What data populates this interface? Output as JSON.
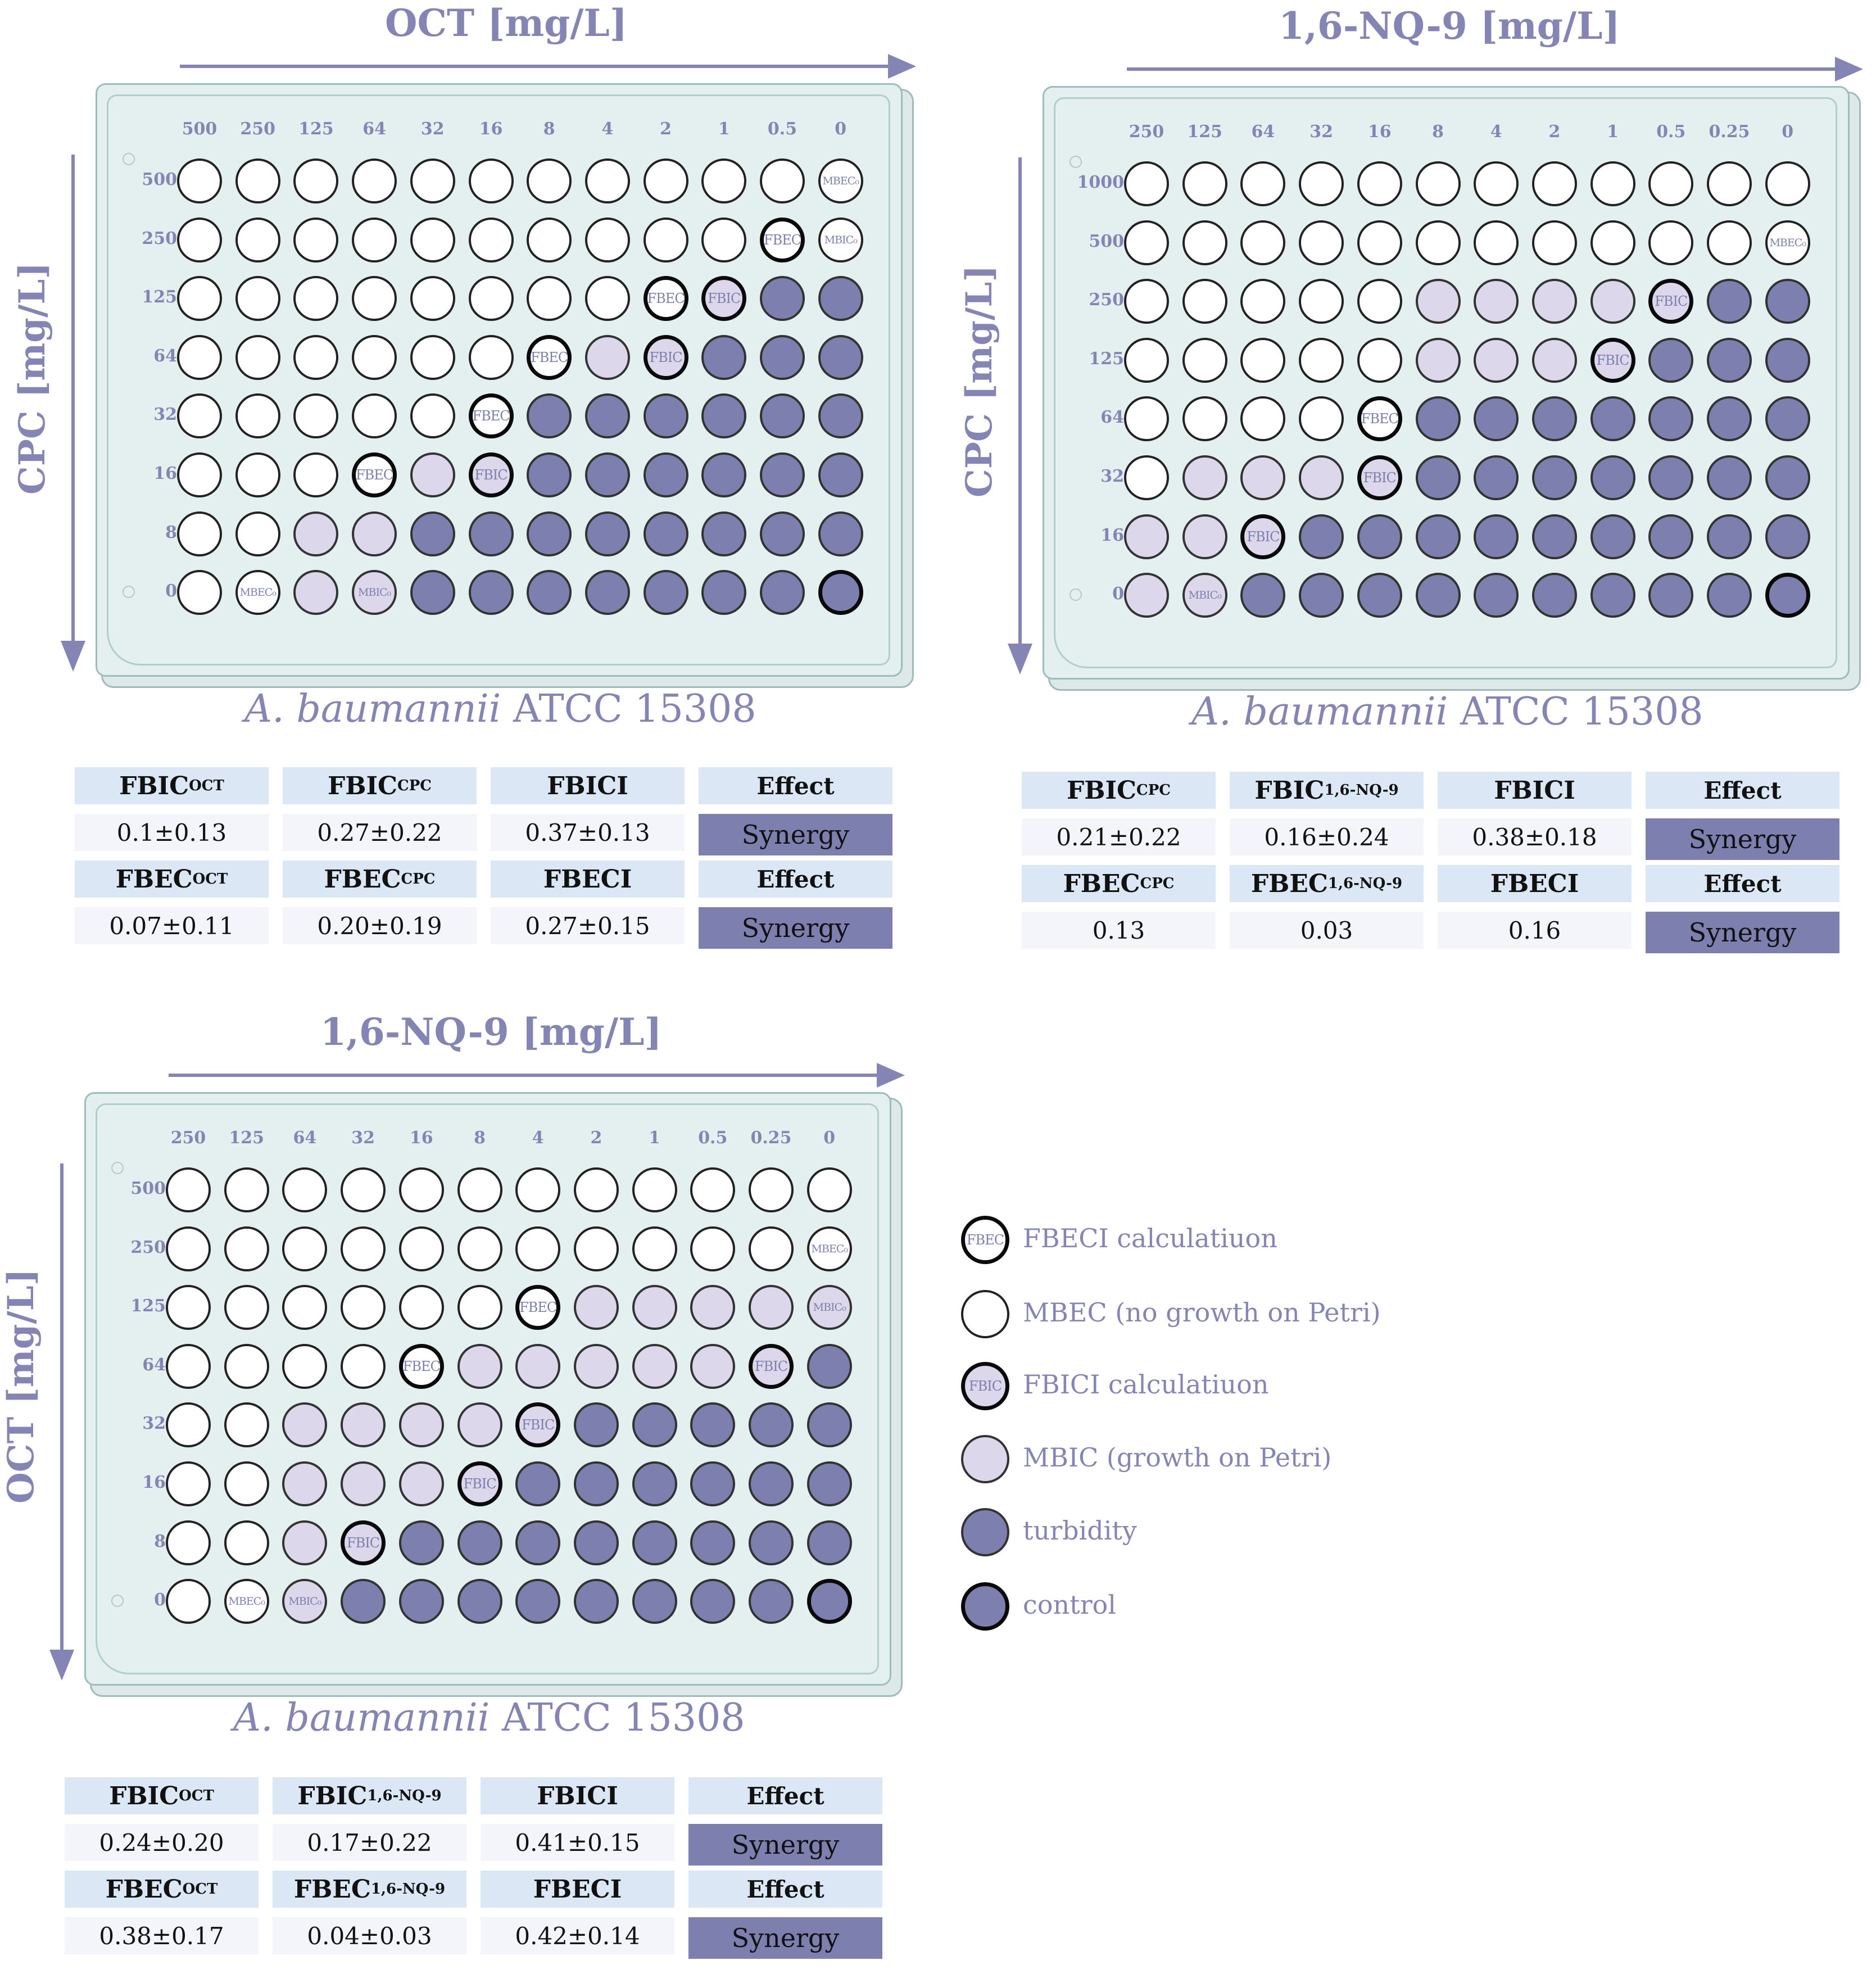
{
  "panels": [
    {
      "x_title": "OCT [mg/L]",
      "y_title": "CPC [mg/L]",
      "cols": [
        "500",
        "250",
        "125",
        "64",
        "32",
        "16",
        "8",
        "4",
        "2",
        "1",
        "0.5",
        "0"
      ],
      "rows": [
        "500",
        "250",
        "125",
        "64",
        "32",
        "16",
        "8",
        "0"
      ],
      "grid": [
        "WWWWWWWWWWWW",
        "WWWWWWWWWWEW",
        "WWWWWWWWEIDD",
        "WWWWWWELIDDD",
        "WWWWWEDDDDDD",
        "WWWELIDDDDDD",
        "WWLLDDDDDDDD",
        "WWLLDDDDDDDC"
      ],
      "labels": [
        {
          "r": 0,
          "c": 11,
          "t": "MBEC₀"
        },
        {
          "r": 1,
          "c": 10,
          "t": "FBEC"
        },
        {
          "r": 1,
          "c": 11,
          "t": "MBIC₀"
        },
        {
          "r": 2,
          "c": 8,
          "t": "FBEC"
        },
        {
          "r": 2,
          "c": 9,
          "t": "FBIC"
        },
        {
          "r": 3,
          "c": 6,
          "t": "FBEC"
        },
        {
          "r": 3,
          "c": 8,
          "t": "FBIC"
        },
        {
          "r": 4,
          "c": 5,
          "t": "FBEC"
        },
        {
          "r": 5,
          "c": 3,
          "t": "FBEC"
        },
        {
          "r": 5,
          "c": 5,
          "t": "FBIC"
        },
        {
          "r": 7,
          "c": 1,
          "t": "MBEC₀"
        },
        {
          "r": 7,
          "c": 3,
          "t": "MBIC₀"
        }
      ],
      "strain": {
        "species": "A. baumannii",
        "strain": "ATCC 15308"
      },
      "table": [
        [
          {
            "m": "FBIC",
            "s": "OCT"
          },
          {
            "m": "FBIC",
            "s": "CPC"
          },
          {
            "m": "FBICI",
            "s": ""
          },
          {
            "m": "Effect",
            "s": ""
          }
        ],
        [
          "0.1±0.13",
          "0.27±0.22",
          "0.37±0.13",
          "Synergy"
        ],
        [
          {
            "m": "FBEC",
            "s": "OCT"
          },
          {
            "m": "FBEC",
            "s": "CPC"
          },
          {
            "m": "FBECI",
            "s": ""
          },
          {
            "m": "Effect",
            "s": ""
          }
        ],
        [
          "0.07±0.11",
          "0.20±0.19",
          "0.27±0.15",
          "Synergy"
        ]
      ]
    },
    {
      "x_title": "1,6-NQ-9 [mg/L]",
      "y_title": "CPC [mg/L]",
      "cols": [
        "250",
        "125",
        "64",
        "32",
        "16",
        "8",
        "4",
        "2",
        "1",
        "0.5",
        "0.25",
        "0"
      ],
      "rows": [
        "1000",
        "500",
        "250",
        "125",
        "64",
        "32",
        "16",
        "0"
      ],
      "grid": [
        "WWWWWWWWWWWW",
        "WWWWWWWWWWWW",
        "WWWWWLLLLIDD",
        "WWWWWLLLIDDD",
        "WWWWEDDDDDDD",
        "WLLLIDDDDDDD",
        "LLIDDDDDDDDD",
        "LLDDDDDDDDDC"
      ],
      "labels": [
        {
          "r": 1,
          "c": 11,
          "t": "MBEC₀"
        },
        {
          "r": 2,
          "c": 9,
          "t": "FBIC"
        },
        {
          "r": 3,
          "c": 8,
          "t": "FBIC"
        },
        {
          "r": 4,
          "c": 4,
          "t": "FBEC"
        },
        {
          "r": 5,
          "c": 4,
          "t": "FBIC"
        },
        {
          "r": 6,
          "c": 2,
          "t": "FBIC"
        },
        {
          "r": 7,
          "c": 1,
          "t": "MBIC₀"
        }
      ],
      "strain": {
        "species": "A. baumannii",
        "strain": "ATCC 15308"
      },
      "table": [
        [
          {
            "m": "FBIC",
            "s": "CPC"
          },
          {
            "m": "FBIC",
            "s": "1,6-NQ-9"
          },
          {
            "m": "FBICI",
            "s": ""
          },
          {
            "m": "Effect",
            "s": ""
          }
        ],
        [
          "0.21±0.22",
          "0.16±0.24",
          "0.38±0.18",
          "Synergy"
        ],
        [
          {
            "m": "FBEC",
            "s": "CPC"
          },
          {
            "m": "FBEC",
            "s": "1,6-NQ-9"
          },
          {
            "m": "FBECI",
            "s": ""
          },
          {
            "m": "Effect",
            "s": ""
          }
        ],
        [
          "0.13",
          "0.03",
          "0.16",
          "Synergy"
        ]
      ]
    },
    {
      "x_title": "1,6-NQ-9 [mg/L]",
      "y_title": "OCT [mg/L]",
      "cols": [
        "250",
        "125",
        "64",
        "32",
        "16",
        "8",
        "4",
        "2",
        "1",
        "0.5",
        "0.25",
        "0"
      ],
      "rows": [
        "500",
        "250",
        "125",
        "64",
        "32",
        "16",
        "8",
        "0"
      ],
      "grid": [
        "WWWWWWWWWWWW",
        "WWWWWWWWWWWW",
        "WWWWWWELLLLL",
        "WWWWELLLLLID",
        "WWLLLLIDDDDD",
        "WWLLLIDDDDDD",
        "WWLIDDDDDDDD",
        "WWLDDDDDDDDC"
      ],
      "labels": [
        {
          "r": 1,
          "c": 11,
          "t": "MBEC₀"
        },
        {
          "r": 2,
          "c": 6,
          "t": "FBEC"
        },
        {
          "r": 2,
          "c": 11,
          "t": "MBIC₀"
        },
        {
          "r": 3,
          "c": 4,
          "t": "FBEC"
        },
        {
          "r": 3,
          "c": 10,
          "t": "FBIC"
        },
        {
          "r": 4,
          "c": 6,
          "t": "FBIC"
        },
        {
          "r": 5,
          "c": 5,
          "t": "FBIC"
        },
        {
          "r": 6,
          "c": 3,
          "t": "FBIC"
        },
        {
          "r": 7,
          "c": 1,
          "t": "MBEC₀"
        },
        {
          "r": 7,
          "c": 2,
          "t": "MBIC₀"
        }
      ],
      "strain": {
        "species": "A. baumannii",
        "strain": "ATCC 15308"
      },
      "table": [
        [
          {
            "m": "FBIC",
            "s": "OCT"
          },
          {
            "m": "FBIC",
            "s": "1,6-NQ-9"
          },
          {
            "m": "FBICI",
            "s": ""
          },
          {
            "m": "Effect",
            "s": ""
          }
        ],
        [
          "0.24±0.20",
          "0.17±0.22",
          "0.41±0.15",
          "Synergy"
        ],
        [
          {
            "m": "FBEC",
            "s": "OCT"
          },
          {
            "m": "FBEC",
            "s": "1,6-NQ-9"
          },
          {
            "m": "FBECI",
            "s": ""
          },
          {
            "m": "Effect",
            "s": ""
          }
        ],
        [
          "0.38±0.17",
          "0.04±0.03",
          "0.42±0.14",
          "Synergy"
        ]
      ]
    }
  ],
  "legend": [
    {
      "type": "fbec",
      "icon": "FBEC",
      "text": "FBECI  calculatiuon"
    },
    {
      "type": "white",
      "icon": "",
      "text": "MBEC (no growth on Petri)"
    },
    {
      "type": "fbic",
      "icon": "FBIC",
      "text": "FBICI  calculatiuon"
    },
    {
      "type": "light",
      "icon": "",
      "text": "MBIC (growth on Petri)"
    },
    {
      "type": "dark",
      "icon": "",
      "text": "turbidity"
    },
    {
      "type": "control",
      "icon": "",
      "text": "control"
    }
  ],
  "colors": {
    "white": "#ffffff",
    "light": "#dcd7ea",
    "dark": "#7d7faf",
    "header": "#dce7f5",
    "axis": "#8585b5"
  }
}
